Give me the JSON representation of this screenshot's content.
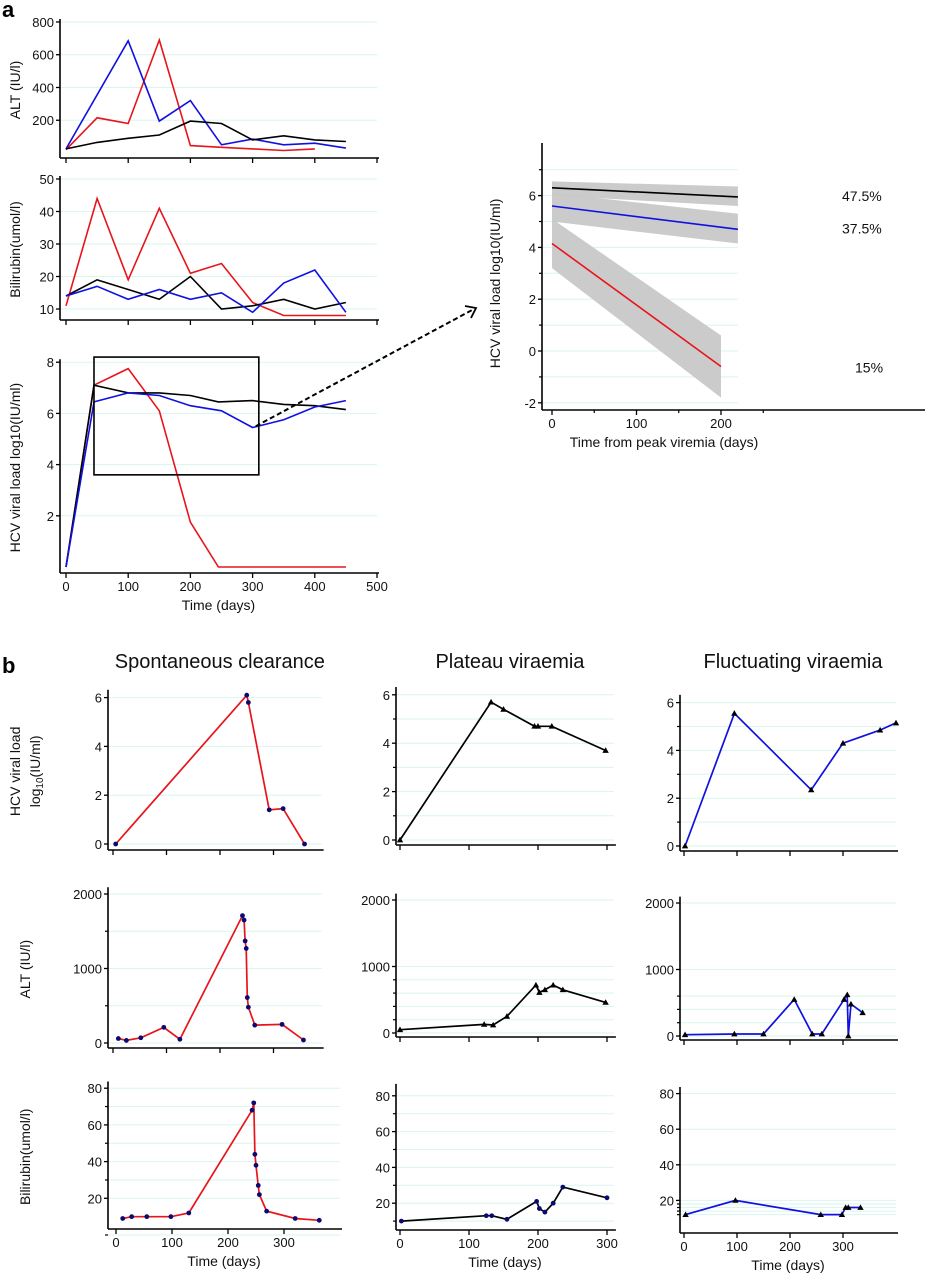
{
  "panel_a_label": "a",
  "panel_b_label": "b",
  "colors": {
    "clearance": "#e8141b",
    "plateau": "#000000",
    "fluctuating": "#1010e0",
    "grid": "#d8f5ef",
    "ci": "#c8c8c8",
    "marker_dot": "#0a0a70"
  },
  "chart_data": [
    {
      "id": "a-alt",
      "type": "line",
      "ylabel": "ALT (IU/l)",
      "xlabel": "",
      "xlim": [
        0,
        500
      ],
      "ylim": [
        0,
        800
      ],
      "yticks": [
        200,
        400,
        600,
        800
      ],
      "xticks": [
        0,
        100,
        200,
        300,
        400,
        500
      ],
      "show_xtick_labels": false,
      "series": [
        {
          "name": "clearance",
          "color": "#e8141b",
          "x": [
            0,
            50,
            100,
            150,
            200,
            250,
            300,
            350,
            400
          ],
          "y": [
            20,
            215,
            180,
            690,
            45,
            35,
            25,
            15,
            25
          ]
        },
        {
          "name": "fluctuating",
          "color": "#1010e0",
          "x": [
            0,
            100,
            150,
            200,
            250,
            300,
            350,
            400,
            450
          ],
          "y": [
            25,
            685,
            195,
            320,
            50,
            85,
            50,
            60,
            30
          ]
        },
        {
          "name": "plateau",
          "color": "#000000",
          "x": [
            0,
            50,
            100,
            150,
            200,
            250,
            300,
            350,
            400,
            450
          ],
          "y": [
            25,
            65,
            90,
            110,
            195,
            180,
            80,
            105,
            80,
            70
          ]
        }
      ]
    },
    {
      "id": "a-bilirubin",
      "type": "line",
      "ylabel": "Bilirubin(umol/l)",
      "xlabel": "",
      "xlim": [
        0,
        500
      ],
      "ylim": [
        7,
        50
      ],
      "yticks": [
        10,
        20,
        30,
        40,
        50
      ],
      "xticks": [
        0,
        100,
        200,
        300,
        400,
        500
      ],
      "show_xtick_labels": false,
      "series": [
        {
          "name": "clearance",
          "color": "#e8141b",
          "x": [
            0,
            50,
            100,
            150,
            200,
            250,
            300,
            350,
            400,
            450
          ],
          "y": [
            11,
            44,
            19,
            41,
            21,
            24,
            12,
            8,
            8,
            8
          ]
        },
        {
          "name": "plateau",
          "color": "#000000",
          "x": [
            0,
            50,
            100,
            150,
            200,
            250,
            300,
            350,
            400,
            450
          ],
          "y": [
            14,
            19,
            16,
            13,
            20,
            10,
            11,
            13,
            10,
            12
          ]
        },
        {
          "name": "fluctuating",
          "color": "#1010e0",
          "x": [
            0,
            50,
            100,
            150,
            200,
            250,
            300,
            350,
            400,
            450
          ],
          "y": [
            14,
            17,
            13,
            16,
            13,
            15,
            9,
            18,
            22,
            9
          ]
        }
      ]
    },
    {
      "id": "a-viral",
      "type": "line",
      "ylabel": "HCV viral load log10(IU/ml)",
      "xlabel": "Time (days)",
      "xlim": [
        0,
        500
      ],
      "ylim": [
        0,
        8
      ],
      "yticks": [
        2,
        4,
        6,
        8
      ],
      "xticks": [
        0,
        100,
        200,
        300,
        400,
        500
      ],
      "show_xtick_labels": true,
      "highlight_box": {
        "x": [
          45,
          310
        ],
        "y": [
          3.6,
          8.2
        ]
      },
      "series": [
        {
          "name": "clearance",
          "color": "#e8141b",
          "x": [
            0,
            45,
            100,
            150,
            200,
            245,
            300,
            350,
            400,
            450
          ],
          "y": [
            0,
            7.1,
            7.75,
            6.1,
            1.75,
            0,
            0,
            0,
            0,
            0
          ]
        },
        {
          "name": "plateau",
          "color": "#000000",
          "x": [
            0,
            45,
            100,
            150,
            200,
            245,
            300,
            350,
            400,
            450
          ],
          "y": [
            0,
            7.1,
            6.8,
            6.8,
            6.7,
            6.45,
            6.5,
            6.35,
            6.3,
            6.15
          ]
        },
        {
          "name": "fluctuating",
          "color": "#1010e0",
          "x": [
            0,
            45,
            100,
            150,
            200,
            250,
            300,
            350,
            400,
            450
          ],
          "y": [
            0,
            6.45,
            6.8,
            6.7,
            6.3,
            6.1,
            5.45,
            5.75,
            6.25,
            6.5
          ]
        }
      ]
    },
    {
      "id": "a-model",
      "type": "line",
      "ylabel": "HCV viral load log10(IU/ml)",
      "xlabel": "Time from peak viremia (days)",
      "xlim": [
        -5,
        300
      ],
      "ylim": [
        -2.3,
        7.5
      ],
      "yticks": [
        -2,
        0,
        2,
        4,
        6
      ],
      "yminor": [
        -1,
        1,
        3,
        5,
        7
      ],
      "xticks": [
        0,
        100,
        200
      ],
      "xminor": [
        50,
        150,
        250
      ],
      "series": [
        {
          "name": "plateau",
          "color": "#000000",
          "x": [
            0,
            220
          ],
          "y": [
            6.3,
            5.95
          ],
          "ci_lower": [
            6.0,
            5.6
          ],
          "ci_upper": [
            6.55,
            6.35
          ],
          "label": "47.5%"
        },
        {
          "name": "fluctuating",
          "color": "#1010e0",
          "x": [
            0,
            220
          ],
          "y": [
            5.6,
            4.7
          ],
          "ci_lower": [
            5.0,
            4.15
          ],
          "ci_upper": [
            6.1,
            5.3
          ],
          "label": "37.5%"
        },
        {
          "name": "clearance",
          "color": "#e8141b",
          "x": [
            0,
            200
          ],
          "y": [
            4.15,
            -0.6
          ],
          "ci_lower": [
            3.2,
            -1.8
          ],
          "ci_upper": [
            5.1,
            0.6
          ],
          "label": "15%"
        }
      ]
    },
    {
      "id": "b-sc-viral",
      "type": "line",
      "title": "Spontaneous clearance",
      "ylabel": "HCV viral load",
      "ylabel2_base": "log",
      "ylabel2_sub": "10",
      "ylabel2_rest": "(IU/ml)",
      "xlim": [
        0,
        390
      ],
      "ylim": [
        -0.2,
        6.2
      ],
      "yticks": [
        0,
        2,
        4,
        6
      ],
      "xticks": [
        0,
        100,
        200,
        300
      ],
      "marker": "dot",
      "series": [
        {
          "name": "clearance",
          "color": "#e8141b",
          "x": [
            5,
            250,
            253,
            292,
            318,
            358
          ],
          "y": [
            0,
            6.1,
            5.8,
            1.4,
            1.45,
            0
          ]
        }
      ]
    },
    {
      "id": "b-sc-alt",
      "type": "line",
      "ylabel": "ALT (IU/l)",
      "xlim": [
        0,
        390
      ],
      "ylim": [
        0,
        2050
      ],
      "yticks": [
        0,
        1000,
        2000
      ],
      "yminor": [
        500,
        1500
      ],
      "xticks": [
        0,
        100,
        200,
        300
      ],
      "marker": "dot",
      "series": [
        {
          "name": "clearance",
          "color": "#e8141b",
          "x": [
            10,
            25,
            52,
            95,
            125,
            242,
            245,
            247,
            249,
            251,
            253,
            265,
            316,
            356
          ],
          "y": [
            60,
            35,
            70,
            210,
            50,
            1710,
            1650,
            1370,
            1270,
            610,
            480,
            240,
            250,
            40
          ]
        }
      ]
    },
    {
      "id": "b-sc-bilirubin",
      "type": "line",
      "ylabel": "Bilirubin(umol/l)",
      "xlabel": "Time (days)",
      "xlim": [
        0,
        400
      ],
      "ylim": [
        0,
        82
      ],
      "yticks": [
        20,
        40,
        60,
        80
      ],
      "yminor": [
        0,
        30,
        50,
        70
      ],
      "xticks": [
        0,
        100,
        200,
        300
      ],
      "show_xtick_labels": true,
      "marker": "dot",
      "series": [
        {
          "name": "clearance",
          "color": "#e8141b",
          "x": [
            12,
            28,
            55,
            98,
            130,
            243,
            246,
            248,
            250,
            254,
            256,
            269,
            320,
            363
          ],
          "y": [
            9,
            10,
            10,
            10,
            12,
            68,
            72,
            44,
            38,
            27,
            22,
            13,
            9,
            8
          ]
        }
      ]
    },
    {
      "id": "b-pv-viral",
      "type": "line",
      "title": "Plateau viraemia",
      "xlim": [
        0,
        310
      ],
      "ylim": [
        -0.2,
        6.2
      ],
      "yticks": [
        0,
        2,
        4,
        6
      ],
      "yminor": [
        1,
        3,
        5
      ],
      "xticks": [
        0,
        100,
        200,
        300
      ],
      "marker": "triangle",
      "series": [
        {
          "name": "plateau",
          "color": "#000000",
          "x": [
            0,
            132,
            150,
            195,
            200,
            220,
            298
          ],
          "y": [
            0,
            5.7,
            5.4,
            4.7,
            4.7,
            4.7,
            3.7
          ]
        }
      ]
    },
    {
      "id": "b-pv-alt",
      "type": "line",
      "xlim": [
        0,
        310
      ],
      "ylim": [
        0,
        2050
      ],
      "yticks": [
        0,
        1000,
        2000
      ],
      "yminor": [
        200,
        400,
        600,
        800
      ],
      "xticks": [
        0,
        100,
        200,
        300
      ],
      "marker": "triangle",
      "series": [
        {
          "name": "plateau",
          "color": "#000000",
          "x": [
            0,
            122,
            135,
            155,
            197,
            202,
            210,
            222,
            236,
            298
          ],
          "y": [
            50,
            130,
            120,
            250,
            720,
            610,
            650,
            720,
            650,
            460
          ]
        }
      ]
    },
    {
      "id": "b-pv-bilirubin",
      "type": "line",
      "xlabel": "Time (days)",
      "xlim": [
        0,
        310
      ],
      "ylim": [
        0,
        85
      ],
      "yticks": [
        20,
        40,
        60,
        80
      ],
      "yminor": [
        10,
        30,
        50,
        70
      ],
      "xticks": [
        0,
        100,
        200,
        300
      ],
      "show_xtick_labels": true,
      "marker": "dot",
      "series": [
        {
          "name": "plateau",
          "color": "#000000",
          "x": [
            2,
            125,
            133,
            155,
            198,
            202,
            210,
            222,
            236,
            300
          ],
          "y": [
            10,
            13,
            13,
            11,
            21,
            17,
            15,
            20,
            29,
            23
          ]
        }
      ]
    },
    {
      "id": "b-fv-viral",
      "type": "line",
      "title": "Fluctuating viraemia",
      "xlim": [
        0,
        400
      ],
      "ylim": [
        -0.2,
        6.2
      ],
      "yticks": [
        0,
        2,
        4,
        6
      ],
      "yminor": [
        1,
        3,
        5
      ],
      "xticks": [
        0,
        100,
        200,
        300
      ],
      "marker": "triangle",
      "series": [
        {
          "name": "fluctuating",
          "color": "#1010e0",
          "x": [
            2,
            95,
            240,
            300,
            370,
            400
          ],
          "y": [
            0,
            5.55,
            2.35,
            4.3,
            4.85,
            5.15
          ]
        }
      ]
    },
    {
      "id": "b-fv-alt",
      "type": "line",
      "xlim": [
        0,
        400
      ],
      "ylim": [
        0,
        2050
      ],
      "yticks": [
        0,
        1000,
        2000
      ],
      "yminor": [
        200,
        400,
        600
      ],
      "xticks": [
        0,
        100,
        200,
        300
      ],
      "marker": "triangle",
      "series": [
        {
          "name": "fluctuating",
          "color": "#1010e0",
          "x": [
            2,
            95,
            150,
            208,
            242,
            260,
            302,
            308,
            310,
            315,
            337
          ],
          "y": [
            20,
            30,
            30,
            550,
            30,
            30,
            550,
            620,
            0,
            480,
            350
          ]
        }
      ]
    },
    {
      "id": "b-fv-bilirubin",
      "type": "line",
      "xlabel": "Time (days)",
      "xlim": [
        0,
        400
      ],
      "ylim": [
        0,
        82
      ],
      "yticks": [
        20,
        40,
        60,
        80
      ],
      "yminor": [
        12,
        14,
        16,
        18
      ],
      "xticks": [
        0,
        100,
        200,
        300
      ],
      "show_xtick_labels": true,
      "marker": "triangle",
      "series": [
        {
          "name": "fluctuating",
          "color": "#1010e0",
          "x": [
            3,
            97,
            258,
            298,
            305,
            310,
            333
          ],
          "y": [
            12,
            20,
            12,
            12,
            16,
            16,
            16
          ]
        }
      ]
    }
  ]
}
